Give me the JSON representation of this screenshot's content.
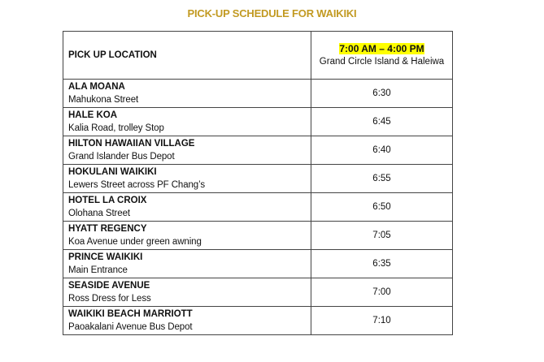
{
  "title": "PICK-UP SCHEDULE FOR WAIKIKI",
  "header": {
    "location_label": "PICK UP LOCATION",
    "time_range": "7:00 AM – 4:00 PM",
    "tour_name": "Grand Circle Island & Haleiwa",
    "highlight_color": "#ffff00"
  },
  "title_color": "#c29a22",
  "rows": [
    {
      "name": "ALA MOANA",
      "detail": "Mahukona Street",
      "time": "6:30"
    },
    {
      "name": "HALE KOA",
      "detail": "Kalia Road, trolley Stop",
      "time": "6:45"
    },
    {
      "name": "HILTON HAWAIIAN VILLAGE",
      "detail": "Grand Islander Bus Depot",
      "time": "6:40"
    },
    {
      "name": "HOKULANI WAIKIKI",
      "detail": "Lewers Street across PF Chang’s",
      "time": "6:55"
    },
    {
      "name": "HOTEL LA CROIX",
      "detail": "Olohana Street",
      "time": "6:50"
    },
    {
      "name": "HYATT REGENCY",
      "detail": "Koa Avenue under green awning",
      "time": "7:05"
    },
    {
      "name": "PRINCE WAIKIKI",
      "detail": "Main Entrance",
      "time": "6:35"
    },
    {
      "name": "SEASIDE AVENUE",
      "detail": "Ross Dress for Less",
      "time": "7:00"
    },
    {
      "name": "WAIKIKI BEACH MARRIOTT",
      "detail": "Paoakalani Avenue Bus Depot",
      "time": "7:10"
    }
  ]
}
